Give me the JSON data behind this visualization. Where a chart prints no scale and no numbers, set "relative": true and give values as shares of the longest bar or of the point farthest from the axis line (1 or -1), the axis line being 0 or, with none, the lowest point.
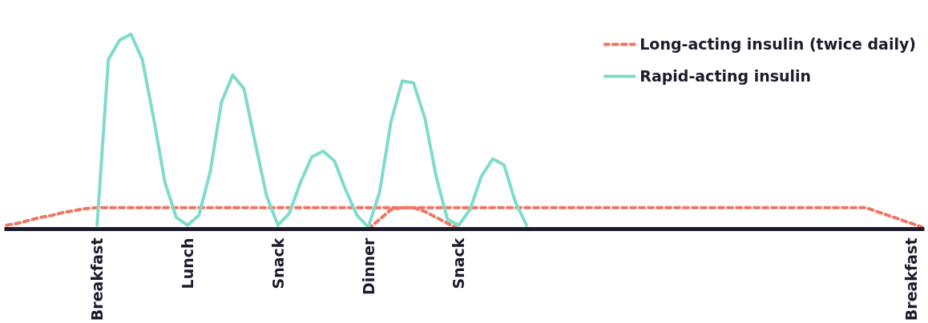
{
  "chart_data": {
    "type": "line",
    "relative": true,
    "tick_labels": "x",
    "grid": false,
    "legend": "top right",
    "categories": [
      null,
      null,
      null,
      null,
      null,
      null,
      null,
      null,
      "Breakfast",
      null,
      null,
      null,
      null,
      null,
      null,
      null,
      "Lunch",
      null,
      null,
      null,
      null,
      null,
      null,
      null,
      "Snack",
      null,
      null,
      null,
      null,
      null,
      null,
      null,
      "Dinner",
      null,
      null,
      null,
      null,
      null,
      null,
      null,
      "Snack",
      null,
      null,
      null,
      null,
      null,
      null,
      null,
      null,
      null,
      null,
      null,
      null,
      null,
      null,
      null,
      null,
      null,
      null,
      null,
      null,
      null,
      null,
      null,
      null,
      null,
      null,
      null,
      null,
      null,
      null,
      null,
      null,
      null,
      null,
      null,
      null,
      null,
      null,
      null,
      "Breakfast",
      null
    ],
    "series": [
      {
        "name": "Long-acting insulin (twice daily)",
        "color": "#f07562",
        "line_style": "dashed",
        "values": [
          0.02,
          0.03,
          0.045,
          0.06,
          0.07,
          0.085,
          0.095,
          0.105,
          0.11,
          0.11,
          0.11,
          0.11,
          0.11,
          0.11,
          0.11,
          0.11,
          0.11,
          0.11,
          0.11,
          0.11,
          0.11,
          0.11,
          0.11,
          0.11,
          0.11,
          0.11,
          0.11,
          0.11,
          0.11,
          0.11,
          0.11,
          0.11,
          0.11,
          0.11,
          0.11,
          0.11,
          0.11,
          0.11,
          0.11,
          0.11,
          0.11,
          0.11,
          0.11,
          0.11,
          0.11,
          0.11,
          0.11,
          0.11,
          0.11,
          0.11,
          0.11,
          0.11,
          0.11,
          0.11,
          0.11,
          0.11,
          0.11,
          0.11,
          0.11,
          0.11,
          0.11,
          0.11,
          0.11,
          0.11,
          0.11,
          0.11,
          0.11,
          0.11,
          0.11,
          0.11,
          0.11,
          0.11,
          0.11,
          0.11,
          0.11,
          0.11,
          0.11,
          0.09,
          0.07,
          0.05,
          0.03,
          0.01
        ]
      },
      {
        "color": "#f07562",
        "line_style": "dashed",
        "values": [
          null,
          null,
          null,
          null,
          null,
          null,
          null,
          null,
          null,
          null,
          null,
          null,
          null,
          null,
          null,
          null,
          null,
          null,
          null,
          null,
          null,
          null,
          null,
          null,
          null,
          null,
          null,
          null,
          null,
          null,
          null,
          null,
          0.0,
          0.05,
          0.1,
          0.11,
          0.11,
          0.09,
          0.06,
          0.03,
          0.0,
          null,
          null,
          null,
          null,
          null,
          null,
          null,
          null,
          null,
          null,
          null,
          null,
          null,
          null,
          null,
          null,
          null,
          null,
          null,
          null,
          null,
          null,
          null,
          null,
          null,
          null,
          null,
          null,
          null,
          null,
          null,
          null,
          null,
          null,
          null,
          null,
          null,
          null,
          null,
          null,
          null
        ]
      },
      {
        "name": "Rapid-acting insulin",
        "color": "#7fdccb",
        "line_style": "solid",
        "values": [
          null,
          null,
          null,
          null,
          null,
          null,
          null,
          null,
          0.02,
          0.87,
          0.97,
          1.0,
          0.87,
          0.57,
          0.24,
          0.06,
          0.02,
          0.07,
          0.29,
          0.65,
          0.79,
          0.72,
          0.44,
          0.17,
          0.02,
          0.08,
          0.24,
          0.37,
          0.4,
          0.35,
          0.2,
          0.07,
          0.01,
          0.19,
          0.55,
          0.76,
          0.75,
          0.57,
          0.27,
          0.05,
          0.02,
          0.1,
          0.27,
          0.36,
          0.33,
          0.14,
          0.02,
          null,
          null,
          null,
          null,
          null,
          null,
          null,
          null,
          null,
          null,
          null,
          null,
          null,
          null,
          null,
          null,
          null,
          null,
          null,
          null,
          null,
          null,
          null,
          null,
          null,
          null,
          null,
          null,
          null,
          null,
          null,
          null,
          null,
          null,
          null
        ]
      }
    ]
  }
}
